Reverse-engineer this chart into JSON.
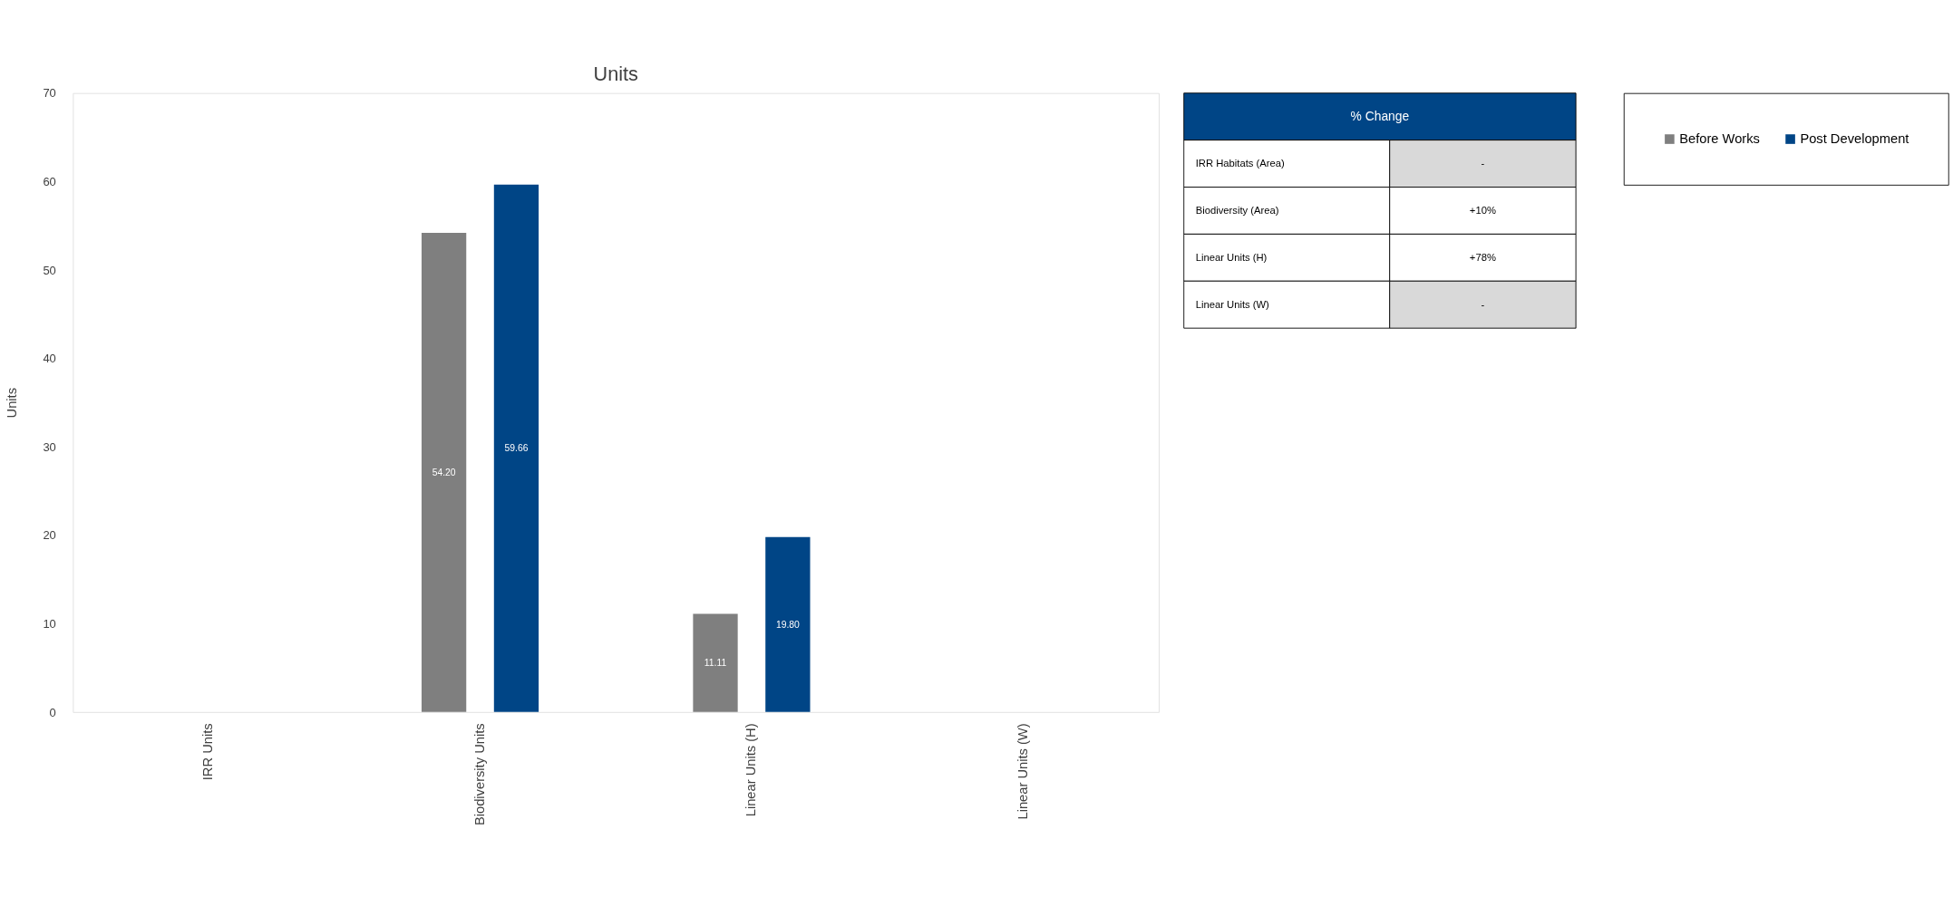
{
  "chart_data": [
    {
      "type": "bar",
      "title": "Units",
      "ylabel": "Units",
      "categories": [
        "IRR Units",
        "Biodiversity Units",
        "Linear Units (H)",
        "Linear Units (W)"
      ],
      "series": [
        {
          "name": "Before Works",
          "color": "#7f7f7f",
          "values": [
            null,
            54.2,
            11.11,
            null
          ],
          "value_labels": [
            null,
            "54.20",
            "11.11",
            null
          ]
        },
        {
          "name": "Post Development",
          "color": "#004586",
          "values": [
            null,
            59.66,
            19.8,
            null
          ],
          "value_labels": [
            null,
            "59.66",
            "19.80",
            null
          ]
        }
      ],
      "ylim": [
        0,
        70
      ],
      "yticks": [
        0,
        10,
        20,
        30,
        40,
        50,
        60,
        70
      ],
      "grid": false,
      "legend": "right"
    },
    {
      "type": "other",
      "title": "% Change",
      "annotations": [
        "IRR Habitats (Area)",
        "-",
        "Biodiversity (Area)",
        "+10%",
        "Linear Units (H)",
        "+78%",
        "Linear Units (W)",
        "-"
      ],
      "colors": [
        "#d9d9d9",
        "#ffffff",
        "#ffffff",
        "#d9d9d9"
      ]
    }
  ]
}
